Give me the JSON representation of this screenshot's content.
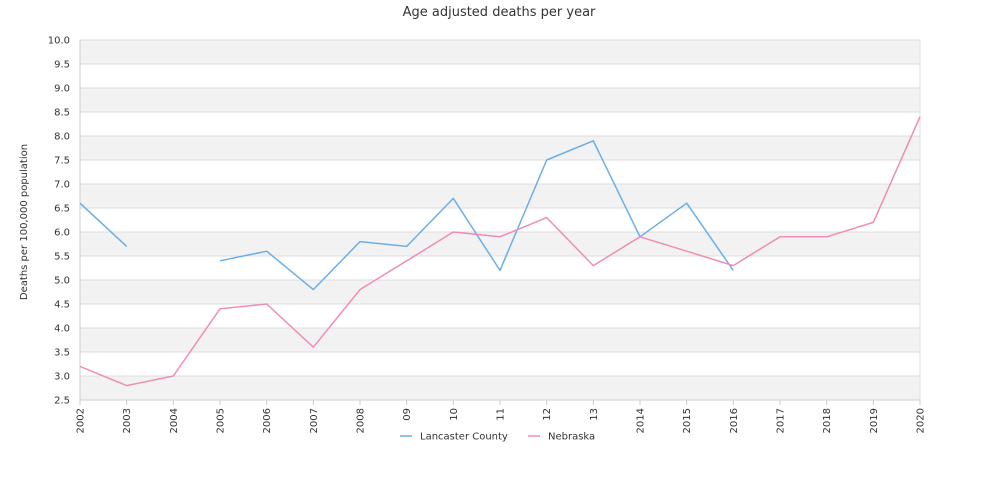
{
  "chart_data": {
    "type": "line",
    "title": "Age adjusted deaths per year",
    "xlabel": "",
    "ylabel": "Deaths per 100,000 population",
    "categories": [
      "2002",
      "2003",
      "2004",
      "2005",
      "2006",
      "2007",
      "2008",
      "09",
      "10",
      "11",
      "12",
      "13",
      "2014",
      "2015",
      "2016",
      "2017",
      "2018",
      "2019",
      "2020"
    ],
    "ylim": [
      2.5,
      10.0
    ],
    "yticks": [
      "2.5",
      "3.0",
      "3.5",
      "4.0",
      "4.5",
      "5.0",
      "5.5",
      "6.0",
      "6.5",
      "7.0",
      "7.5",
      "8.0",
      "8.5",
      "9.0",
      "9.5",
      "10.0"
    ],
    "grid": true,
    "legend_position": "bottom",
    "series": [
      {
        "name": "Lancaster County",
        "color": "#6aaee8",
        "values": [
          6.6,
          5.7,
          null,
          5.4,
          5.6,
          4.8,
          5.8,
          5.7,
          6.7,
          5.2,
          7.5,
          7.9,
          5.9,
          6.6,
          5.2,
          null,
          null,
          null,
          null
        ]
      },
      {
        "name": "Nebraska",
        "color": "#f08cb8",
        "values": [
          3.2,
          2.8,
          3.0,
          4.4,
          4.5,
          3.6,
          4.8,
          5.4,
          6.0,
          5.9,
          6.3,
          5.3,
          5.9,
          5.6,
          5.3,
          5.9,
          5.9,
          6.2,
          8.4
        ]
      }
    ]
  }
}
